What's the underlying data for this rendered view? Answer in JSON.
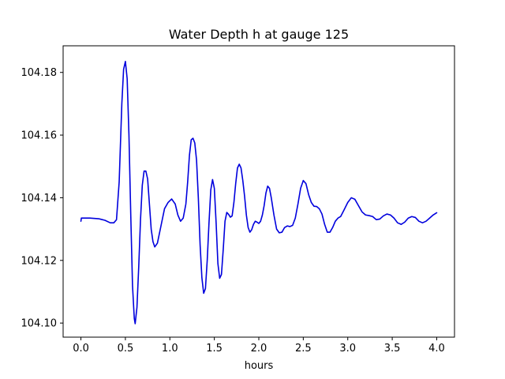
{
  "chart_data": {
    "type": "line",
    "title": "Water Depth h at gauge 125",
    "xlabel": "hours",
    "ylabel": "",
    "xlim": [
      -0.2,
      4.2
    ],
    "ylim": [
      104.0955,
      104.1885
    ],
    "x_ticks": [
      0.0,
      0.5,
      1.0,
      1.5,
      2.0,
      2.5,
      3.0,
      3.5,
      4.0
    ],
    "x_tick_labels": [
      "0.0",
      "0.5",
      "1.0",
      "1.5",
      "2.0",
      "2.5",
      "3.0",
      "3.5",
      "4.0"
    ],
    "y_ticks": [
      104.1,
      104.12,
      104.14,
      104.16,
      104.18
    ],
    "y_tick_labels": [
      "104.10",
      "104.12",
      "104.14",
      "104.16",
      "104.18"
    ],
    "grid": false,
    "series": [
      {
        "color": "#0000dd",
        "x": [
          0.0,
          0.005,
          0.1,
          0.2,
          0.27,
          0.33,
          0.37,
          0.4,
          0.43,
          0.46,
          0.48,
          0.5,
          0.52,
          0.54,
          0.56,
          0.58,
          0.6,
          0.61,
          0.63,
          0.65,
          0.67,
          0.69,
          0.71,
          0.73,
          0.75,
          0.77,
          0.79,
          0.81,
          0.83,
          0.86,
          0.9,
          0.94,
          0.98,
          1.02,
          1.06,
          1.09,
          1.12,
          1.15,
          1.18,
          1.2,
          1.22,
          1.24,
          1.26,
          1.28,
          1.3,
          1.32,
          1.34,
          1.36,
          1.38,
          1.4,
          1.42,
          1.44,
          1.46,
          1.48,
          1.5,
          1.52,
          1.54,
          1.56,
          1.58,
          1.6,
          1.62,
          1.64,
          1.66,
          1.68,
          1.7,
          1.72,
          1.74,
          1.76,
          1.78,
          1.8,
          1.82,
          1.84,
          1.86,
          1.88,
          1.9,
          1.92,
          1.94,
          1.96,
          1.98,
          2.0,
          2.02,
          2.04,
          2.06,
          2.08,
          2.1,
          2.12,
          2.14,
          2.17,
          2.2,
          2.23,
          2.26,
          2.29,
          2.32,
          2.35,
          2.38,
          2.41,
          2.44,
          2.47,
          2.5,
          2.53,
          2.56,
          2.59,
          2.62,
          2.65,
          2.68,
          2.71,
          2.74,
          2.77,
          2.8,
          2.83,
          2.86,
          2.89,
          2.92,
          2.96,
          3.0,
          3.04,
          3.08,
          3.12,
          3.16,
          3.2,
          3.24,
          3.28,
          3.32,
          3.36,
          3.4,
          3.44,
          3.48,
          3.52,
          3.56,
          3.6,
          3.64,
          3.68,
          3.72,
          3.76,
          3.8,
          3.84,
          3.88,
          3.92,
          3.96,
          4.0
        ],
        "y": [
          104.1325,
          104.1335,
          104.1335,
          104.1333,
          104.1328,
          104.132,
          104.132,
          104.133,
          104.145,
          104.17,
          104.181,
          104.1835,
          104.178,
          104.16,
          104.135,
          104.112,
          104.1015,
          104.0998,
          104.105,
          104.118,
          104.133,
          104.144,
          104.1485,
          104.1485,
          104.146,
          104.138,
          104.13,
          104.126,
          104.1243,
          104.1255,
          104.131,
          104.1365,
          104.1385,
          104.1396,
          104.138,
          104.1345,
          104.1325,
          104.1335,
          104.138,
          104.145,
          104.1535,
          104.1585,
          104.159,
          104.1575,
          104.152,
          104.14,
          104.125,
          104.1145,
          104.1095,
          104.111,
          104.12,
          104.132,
          104.1425,
          104.1458,
          104.143,
          104.132,
          104.119,
          104.1143,
          104.1155,
          104.1235,
          104.1325,
          104.1353,
          104.1347,
          104.1338,
          104.1342,
          104.1385,
          104.1445,
          104.1495,
          104.1507,
          104.1495,
          104.1455,
          104.1405,
          104.1345,
          104.1305,
          104.129,
          104.1298,
          104.1315,
          104.1325,
          104.1322,
          104.1318,
          104.1325,
          104.1345,
          104.1375,
          104.1415,
          104.1437,
          104.143,
          104.14,
          104.1345,
          104.13,
          104.1288,
          104.129,
          104.1305,
          104.131,
          104.1308,
          104.1312,
          104.1335,
          104.138,
          104.143,
          104.1455,
          104.1445,
          104.141,
          104.1385,
          104.1373,
          104.1372,
          104.1365,
          104.1348,
          104.1315,
          104.129,
          104.129,
          104.1305,
          104.1325,
          104.1335,
          104.134,
          104.1362,
          104.1385,
          104.14,
          104.1395,
          104.1375,
          104.1355,
          104.1345,
          104.1343,
          104.134,
          104.133,
          104.1332,
          104.1342,
          104.1348,
          104.1345,
          104.1335,
          104.132,
          104.1315,
          104.1322,
          104.1335,
          104.134,
          104.1337,
          104.1325,
          104.132,
          104.1325,
          104.1335,
          104.1345,
          104.1352
        ]
      }
    ]
  }
}
